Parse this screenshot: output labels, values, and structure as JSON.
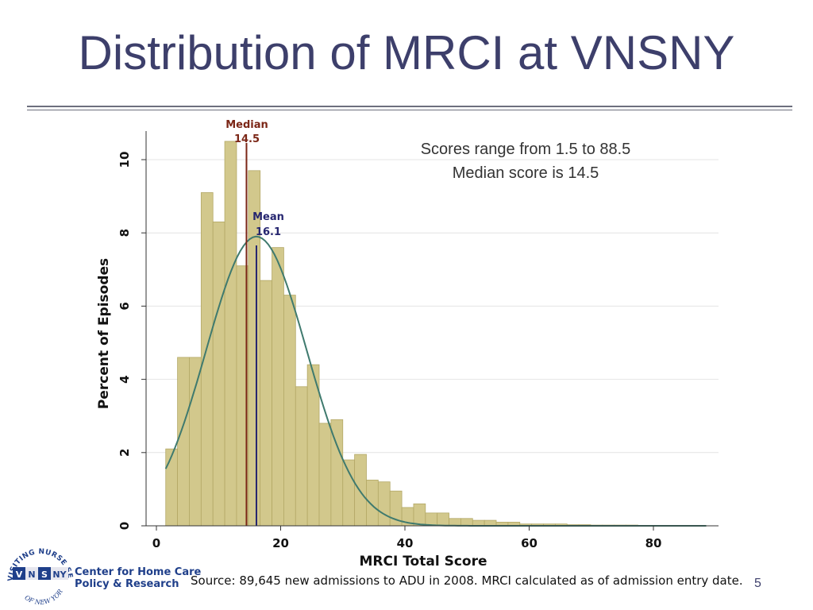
{
  "slide": {
    "title": "Distribution of MRCI at VNSNY",
    "source": "Source: 89,645 new admissions to ADU in 2008.  MRCI calculated as of admission entry date.",
    "page_number": "5"
  },
  "logo": {
    "ring_text": "VISITING NURSE SERVICE",
    "ring_bottom": "OF NEW YORK",
    "letters": [
      "V",
      "N",
      "S",
      "NY"
    ],
    "line1": "Center for Home Care",
    "line2": "Policy & Research",
    "colors": {
      "box_blue": "#1f3f8a",
      "box_alt": "#e6e6ee",
      "text_blue": "#1f3f8a"
    }
  },
  "chart_data": {
    "type": "bar",
    "xlabel": "MRCI Total Score",
    "ylabel": "Percent of Episodes",
    "xlim": [
      0,
      90
    ],
    "ylim": [
      0,
      11.2
    ],
    "xticks": [
      "0",
      "20",
      "40",
      "60",
      "80"
    ],
    "yticks": [
      "0",
      "2",
      "4",
      "6",
      "8",
      "10"
    ],
    "bin_width": 1.9,
    "bin_start": 1.5,
    "values": [
      2.1,
      4.6,
      4.6,
      9.1,
      8.3,
      10.5,
      7.1,
      9.7,
      6.7,
      7.6,
      6.3,
      3.8,
      4.4,
      2.8,
      2.9,
      1.8,
      1.95,
      1.25,
      1.2,
      0.95,
      0.5,
      0.6,
      0.35,
      0.35,
      0.2,
      0.2,
      0.15,
      0.15,
      0.1,
      0.1,
      0.05,
      0.05,
      0.05,
      0.05,
      0.03,
      0.03,
      0.02,
      0.02,
      0.02,
      0.02
    ],
    "normal_curve": {
      "mean": 16.1,
      "sd": 8.1,
      "peak": 7.9,
      "x_range": [
        1.5,
        88.5
      ]
    },
    "median": {
      "label": "Median",
      "value_label": "14.5",
      "value": 14.5,
      "color": "#7b2616"
    },
    "mean": {
      "label": "Mean",
      "value_label": "16.1",
      "value": 16.1,
      "color": "#262670"
    },
    "annotation": [
      "Scores range from 1.5 to 88.5",
      "Median score is 14.5"
    ],
    "grid": true,
    "colors": {
      "bar_fill": "#d2c88c",
      "bar_stroke": "#b3a866",
      "curve": "#3f7a6e",
      "grid": "#e4e4e4"
    }
  }
}
